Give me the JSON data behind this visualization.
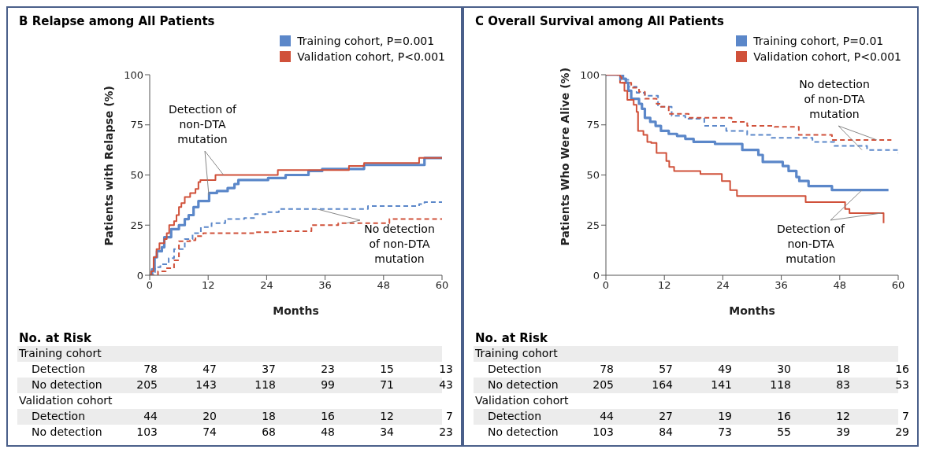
{
  "chart_data": [
    {
      "type": "step",
      "title": "B Relapse among All Patients",
      "xlabel": "Months",
      "ylabel": "Patients with Relapse (%)",
      "xlim": [
        0,
        60
      ],
      "xticks": [
        0,
        12,
        24,
        36,
        48,
        60
      ],
      "ylim": [
        0,
        100
      ],
      "yticks": [
        0,
        25,
        50,
        75,
        100
      ],
      "legend": "top right",
      "series": [
        {
          "name": "Training cohort, P=0.001",
          "color": "#5b87c9",
          "line_style": "solid",
          "x": [
            0,
            0.5,
            1,
            1.5,
            2.5,
            3,
            4.4,
            6,
            7.2,
            8,
            9,
            10,
            12.2,
            13.8,
            16,
            17.4,
            18.2,
            24.3,
            27.9,
            32.6,
            35.4,
            44,
            56.4,
            60
          ],
          "values": [
            0,
            3,
            9,
            12,
            14,
            19,
            23,
            25,
            28,
            30,
            34,
            37,
            41,
            42,
            43.5,
            45.5,
            47.5,
            48.5,
            50,
            52,
            53,
            55,
            58.5,
            58.5
          ]
        },
        {
          "name": "Validation cohort, P<0.001",
          "color": "#d0513a",
          "line_style": "solid",
          "x": [
            0,
            0.3,
            0.8,
            1.4,
            2,
            3,
            3.5,
            4,
            5,
            5.5,
            6,
            6.5,
            7.2,
            8.3,
            9.4,
            10,
            10.4,
            13.5,
            26.3,
            40.9,
            44,
            55.3,
            60
          ],
          "values": [
            0,
            2,
            9,
            13,
            16,
            18,
            21,
            25,
            27,
            30,
            34,
            36,
            39,
            41,
            43,
            46.5,
            47.5,
            50,
            52.5,
            54.5,
            56,
            58.5,
            58.5
          ]
        },
        {
          "color": "#5b87c9",
          "line_style": "dashed",
          "x": [
            0,
            1.1,
            2.2,
            3.9,
            5,
            7.2,
            8.8,
            10.5,
            12.7,
            15.5,
            19.4,
            21.6,
            23.8,
            26.5,
            42,
            44.8,
            55.3,
            56.4,
            60
          ],
          "values": [
            0,
            4,
            5.5,
            8.5,
            13,
            18,
            21,
            24,
            26,
            28,
            28.5,
            30.5,
            31.5,
            33,
            33,
            34.5,
            35.5,
            36.5,
            36.5
          ]
        },
        {
          "color": "#d0513a",
          "line_style": "dashed",
          "x": [
            0,
            1.7,
            3.3,
            5,
            6,
            8.3,
            9.4,
            11,
            21.6,
            26.5,
            33.2,
            38.7,
            49.2,
            60
          ],
          "values": [
            0,
            2,
            3.5,
            7.5,
            17,
            17.5,
            19.5,
            21,
            21.5,
            22,
            25,
            26,
            28,
            28
          ]
        }
      ],
      "annotations": [
        {
          "text": "Detection of non-DTA mutation",
          "x": 12,
          "y": 40
        },
        {
          "text": "No detection of non-DTA mutation",
          "x": 34,
          "y": 33
        },
        "No. at Risk",
        "Training cohort",
        "Detection",
        "78",
        "47",
        "37",
        "23",
        "15",
        "13",
        "No detection",
        "205",
        "143",
        "118",
        "99",
        "71",
        "43",
        "Validation cohort",
        "Detection",
        "44",
        "20",
        "18",
        "16",
        "12",
        "7",
        "No detection",
        "103",
        "74",
        "68",
        "48",
        "34",
        "23"
      ]
    },
    {
      "type": "step",
      "title": "C Overall Survival among All Patients",
      "xlabel": "Months",
      "ylabel": "Patients Who Were Alive (%)",
      "xlim": [
        0,
        60
      ],
      "xticks": [
        0,
        12,
        24,
        36,
        48,
        60
      ],
      "ylim": [
        0,
        100
      ],
      "yticks": [
        0,
        25,
        50,
        75,
        100
      ],
      "legend": "top right",
      "series": [
        {
          "name": "Training cohort, P=0.01",
          "color": "#5b87c9",
          "line_style": "solid",
          "x": [
            0,
            3.5,
            4.1,
            4.6,
            5.2,
            6.8,
            7.4,
            8,
            9.1,
            10.2,
            11.3,
            12.9,
            14.6,
            16.3,
            18,
            22.4,
            28,
            31.3,
            32.2,
            36.3,
            37.5,
            39.1,
            39.7,
            41.6,
            46.4,
            58
          ],
          "values": [
            100,
            98,
            96,
            92,
            88,
            85.5,
            83,
            78.5,
            76.5,
            74.5,
            72,
            70.5,
            69.5,
            68,
            66.5,
            65.5,
            62.5,
            60,
            56.5,
            54.5,
            52,
            49,
            47,
            44.5,
            42.5,
            42.5
          ]
        },
        {
          "name": "Validation cohort, P<0.001",
          "color": "#d0513a",
          "line_style": "solid",
          "x": [
            0,
            2.9,
            3.8,
            4.4,
            5.7,
            6.3,
            6.6,
            7.7,
            8.5,
            9.3,
            10.4,
            12.4,
            13,
            14,
            19.4,
            23.8,
            25.5,
            26.9,
            41,
            49.1,
            50,
            57
          ],
          "values": [
            100,
            96,
            92,
            87.5,
            85,
            81.5,
            72,
            70,
            66.5,
            66,
            61,
            57,
            54,
            52,
            50.5,
            47,
            42.5,
            39.5,
            36.5,
            33,
            31,
            26
          ]
        },
        {
          "color": "#5b87c9",
          "line_style": "dashed",
          "x": [
            0,
            2.9,
            4.6,
            6.3,
            8,
            10.7,
            13.5,
            16.3,
            20.2,
            24.7,
            29,
            34,
            42.4,
            46.9,
            53.6,
            60
          ],
          "values": [
            100,
            97.5,
            94,
            91,
            89.5,
            84,
            79.5,
            78,
            74.5,
            72,
            70,
            68.5,
            66.5,
            64.5,
            62.5,
            61
          ]
        },
        {
          "color": "#d0513a",
          "line_style": "dashed",
          "x": [
            0,
            2.4,
            3.2,
            5.2,
            6.8,
            8,
            10.4,
            11.3,
            12.9,
            17,
            25.8,
            29,
            34.6,
            39.6,
            46.4,
            58.6
          ],
          "values": [
            100,
            99,
            96,
            93.5,
            91.5,
            88,
            85.5,
            84,
            80.5,
            78.5,
            76.5,
            74.5,
            74,
            70,
            67.5,
            67.5
          ]
        }
      ],
      "annotations": [
        {
          "text": "No detection of non-DTA mutation",
          "x": 55,
          "y": 67.5
        },
        {
          "text": "Detection of non-DTA mutation",
          "x": 52,
          "y": 42.5
        },
        "No. at Risk",
        "Training cohort",
        "Detection",
        "78",
        "57",
        "49",
        "30",
        "18",
        "16",
        "No detection",
        "205",
        "164",
        "141",
        "118",
        "83",
        "53",
        "Validation cohort",
        "Detection",
        "44",
        "27",
        "19",
        "16",
        "12",
        "7",
        "No detection",
        "103",
        "84",
        "73",
        "55",
        "39",
        "29"
      ]
    }
  ]
}
